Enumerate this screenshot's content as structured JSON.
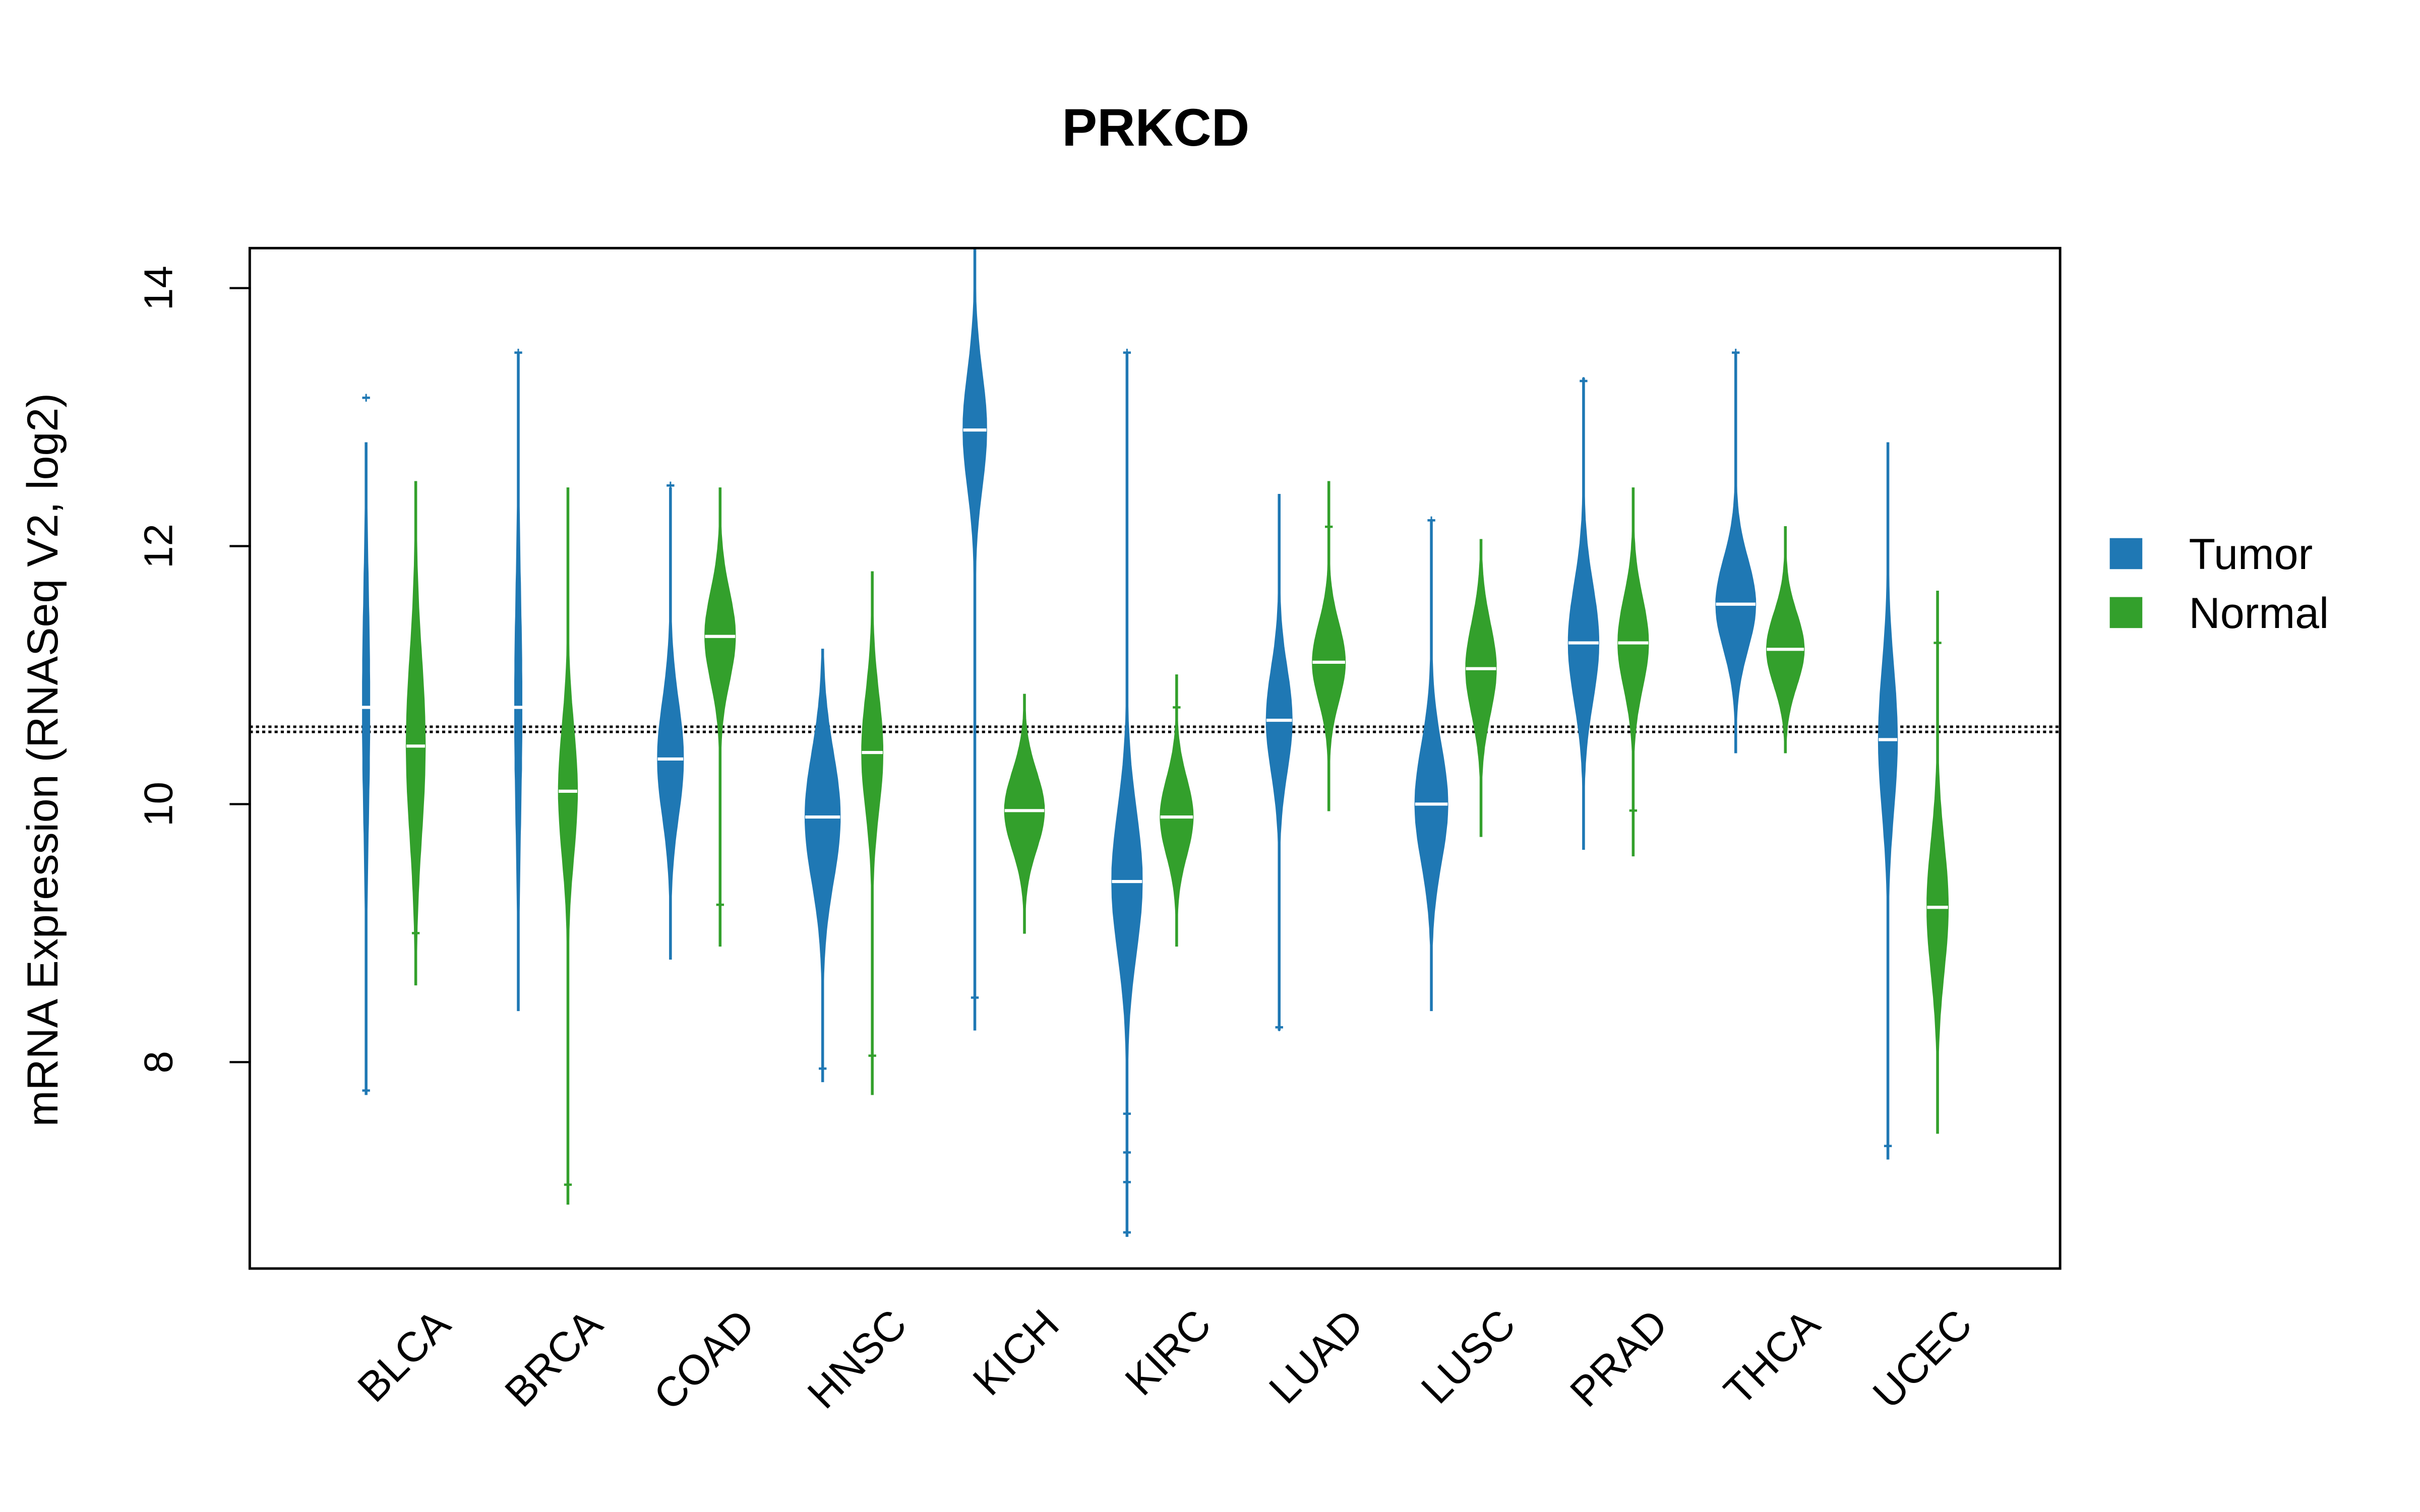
{
  "chart_data": {
    "type": "violin",
    "title": "PRKCD",
    "xlabel": "",
    "ylabel": "mRNA Expression (RNASeq V2, log2)",
    "ylim": [
      6.4,
      14.31
    ],
    "yticks": [
      8,
      10,
      12,
      14
    ],
    "grid": false,
    "reference_lines": [
      10.56,
      10.6
    ],
    "legend": {
      "placement": "right",
      "entries": [
        {
          "label": "Tumor",
          "color": "#1f78b4"
        },
        {
          "label": "Normal",
          "color": "#33a02c"
        }
      ]
    },
    "categories": [
      "BLCA",
      "BRCA",
      "COAD",
      "HNSC",
      "KICH",
      "KIRC",
      "LUAD",
      "LUSC",
      "PRAD",
      "THCA",
      "UCEC"
    ],
    "series": [
      {
        "name": "Tumor",
        "color": "#1f78b4",
        "groups": [
          {
            "min": 7.75,
            "max": 12.8,
            "median": 10.75,
            "sd": 0.9,
            "peak": 0.15,
            "outliers": [
              7.78,
              13.15
            ]
          },
          {
            "min": 8.4,
            "max": 13.5,
            "median": 10.75,
            "sd": 0.9,
            "peak": 0.15,
            "outliers": [
              13.5
            ]
          },
          {
            "min": 8.8,
            "max": 12.45,
            "median": 10.35,
            "sd": 0.45,
            "peak": 0.55,
            "outliers": [
              12.47
            ]
          },
          {
            "min": 7.85,
            "max": 11.2,
            "median": 9.9,
            "sd": 0.5,
            "peak": 0.75,
            "outliers": [
              7.95
            ]
          },
          {
            "min": 8.25,
            "max": 14.3,
            "median": 12.9,
            "sd": 0.45,
            "peak": 0.5,
            "outliers": [
              8.5
            ]
          },
          {
            "min": 6.65,
            "max": 13.5,
            "median": 9.4,
            "sd": 0.55,
            "peak": 0.65,
            "outliers": [
              6.68,
              7.07,
              7.3,
              7.6,
              13.5
            ]
          },
          {
            "min": 8.25,
            "max": 12.4,
            "median": 10.65,
            "sd": 0.4,
            "peak": 0.55,
            "outliers": [
              8.27
            ]
          },
          {
            "min": 8.4,
            "max": 12.2,
            "median": 10.0,
            "sd": 0.45,
            "peak": 0.7,
            "outliers": [
              12.2
            ]
          },
          {
            "min": 9.65,
            "max": 13.3,
            "median": 11.25,
            "sd": 0.45,
            "peak": 0.65,
            "outliers": [
              13.28
            ]
          },
          {
            "min": 10.4,
            "max": 13.5,
            "median": 11.55,
            "sd": 0.35,
            "peak": 0.85,
            "outliers": [
              13.5
            ]
          },
          {
            "min": 7.25,
            "max": 12.8,
            "median": 10.5,
            "sd": 0.55,
            "peak": 0.4,
            "outliers": [
              7.35
            ]
          }
        ]
      },
      {
        "name": "Normal",
        "color": "#33a02c",
        "groups": [
          {
            "min": 8.6,
            "max": 12.5,
            "median": 10.45,
            "sd": 0.7,
            "peak": 0.4,
            "outliers": [
              9.0
            ]
          },
          {
            "min": 6.9,
            "max": 12.45,
            "median": 10.1,
            "sd": 0.5,
            "peak": 0.4,
            "outliers": [
              7.05
            ]
          },
          {
            "min": 8.9,
            "max": 12.45,
            "median": 11.3,
            "sd": 0.35,
            "peak": 0.65,
            "outliers": [
              9.22
            ]
          },
          {
            "min": 7.75,
            "max": 11.8,
            "median": 10.4,
            "sd": 0.45,
            "peak": 0.45,
            "outliers": [
              8.05
            ]
          },
          {
            "min": 9.0,
            "max": 10.85,
            "median": 9.95,
            "sd": 0.3,
            "peak": 0.85,
            "outliers": []
          },
          {
            "min": 8.9,
            "max": 11.0,
            "median": 9.9,
            "sd": 0.3,
            "peak": 0.7,
            "outliers": [
              10.75
            ]
          },
          {
            "min": 9.95,
            "max": 12.5,
            "median": 11.1,
            "sd": 0.3,
            "peak": 0.7,
            "outliers": [
              12.15
            ]
          },
          {
            "min": 9.75,
            "max": 12.05,
            "median": 11.05,
            "sd": 0.35,
            "peak": 0.65,
            "outliers": []
          },
          {
            "min": 9.6,
            "max": 12.45,
            "median": 11.25,
            "sd": 0.35,
            "peak": 0.65,
            "outliers": [
              9.95
            ]
          },
          {
            "min": 10.4,
            "max": 12.15,
            "median": 11.2,
            "sd": 0.28,
            "peak": 0.8,
            "outliers": []
          },
          {
            "min": 7.45,
            "max": 11.65,
            "median": 9.2,
            "sd": 0.5,
            "peak": 0.45,
            "outliers": [
              11.25
            ]
          }
        ]
      }
    ]
  }
}
